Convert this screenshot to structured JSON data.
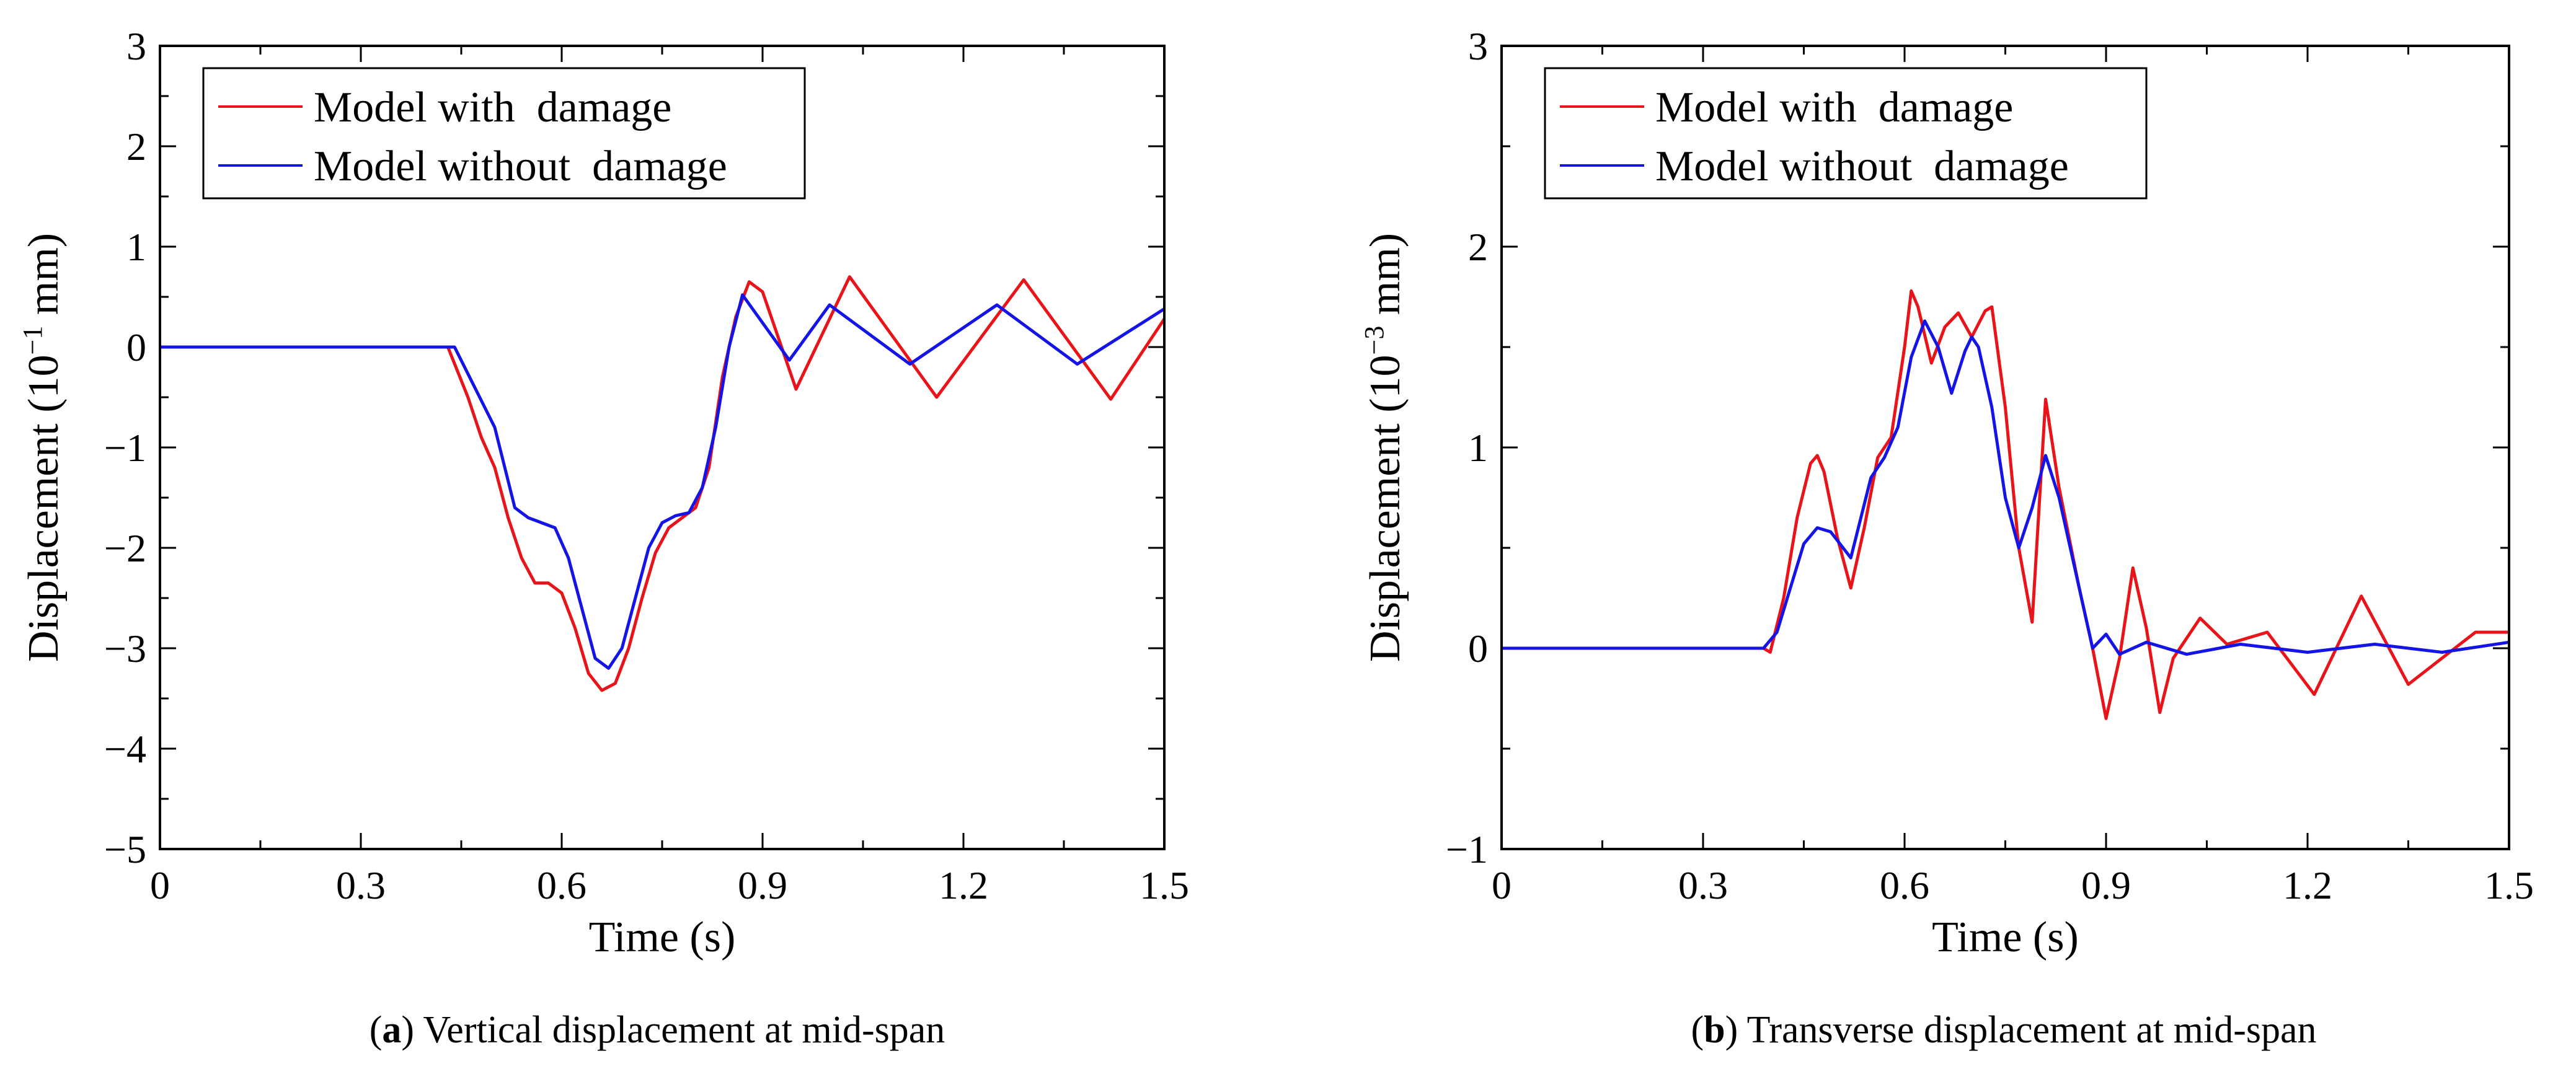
{
  "chart_data": [
    {
      "type": "line",
      "caption_letter": "a",
      "caption_text": "Vertical displacement at mid-span",
      "xlabel": "Time (s)",
      "ylabel_prefix": "Displacement (10",
      "ylabel_exp": "−1",
      "ylabel_suffix": " mm)",
      "xlim": [
        0,
        1.5
      ],
      "ylim": [
        -5,
        3
      ],
      "xticks": [
        0,
        0.3,
        0.6,
        0.9,
        1.2,
        1.5
      ],
      "xtick_labels": [
        "0",
        "0.3",
        "0.6",
        "0.9",
        "1.2",
        "1.5"
      ],
      "yticks": [
        -5,
        -4,
        -3,
        -2,
        -1,
        0,
        1,
        2,
        3
      ],
      "ytick_labels": [
        "−5",
        "−4",
        "−3",
        "−2",
        "−1",
        "0",
        "1",
        "2",
        "3"
      ],
      "grid": false,
      "legend_position": "top-left",
      "series": [
        {
          "name": "Model with  damage",
          "color": "#e8141a",
          "x": [
            0,
            0.43,
            0.46,
            0.48,
            0.5,
            0.52,
            0.54,
            0.56,
            0.58,
            0.6,
            0.62,
            0.64,
            0.66,
            0.68,
            0.7,
            0.72,
            0.74,
            0.76,
            0.78,
            0.8,
            0.82,
            0.84,
            0.86,
            0.88,
            0.9,
            0.95,
            1.03,
            1.16,
            1.29,
            1.42,
            1.5
          ],
          "y": [
            0,
            0,
            -0.5,
            -0.9,
            -1.2,
            -1.7,
            -2.1,
            -2.35,
            -2.35,
            -2.45,
            -2.8,
            -3.25,
            -3.42,
            -3.35,
            -3.0,
            -2.5,
            -2.05,
            -1.8,
            -1.7,
            -1.6,
            -1.2,
            -0.3,
            0.3,
            0.65,
            0.55,
            -0.42,
            0.7,
            -0.5,
            0.67,
            -0.52,
            0.28
          ]
        },
        {
          "name": "Model without  damage",
          "color": "#1414e6",
          "x": [
            0,
            0.44,
            0.5,
            0.53,
            0.55,
            0.57,
            0.59,
            0.61,
            0.63,
            0.65,
            0.67,
            0.69,
            0.71,
            0.73,
            0.75,
            0.77,
            0.79,
            0.81,
            0.83,
            0.85,
            0.87,
            0.94,
            1.0,
            1.12,
            1.25,
            1.37,
            1.5
          ],
          "y": [
            0,
            0,
            -0.8,
            -1.6,
            -1.7,
            -1.75,
            -1.8,
            -2.1,
            -2.6,
            -3.1,
            -3.2,
            -3.0,
            -2.5,
            -2.0,
            -1.75,
            -1.68,
            -1.65,
            -1.4,
            -0.8,
            0.0,
            0.52,
            -0.13,
            0.42,
            -0.17,
            0.42,
            -0.17,
            0.38
          ]
        }
      ]
    },
    {
      "type": "line",
      "caption_letter": "b",
      "caption_text": "Transverse displacement at mid-span",
      "xlabel": "Time (s)",
      "ylabel_prefix": "Displacement (10",
      "ylabel_exp": "−3",
      "ylabel_suffix": " mm)",
      "xlim": [
        0,
        1.5
      ],
      "ylim": [
        -1,
        3
      ],
      "xticks": [
        0,
        0.3,
        0.6,
        0.9,
        1.2,
        1.5
      ],
      "xtick_labels": [
        "0",
        "0.3",
        "0.6",
        "0.9",
        "1.2",
        "1.5"
      ],
      "yticks": [
        -1,
        0,
        1,
        2,
        3
      ],
      "ytick_labels": [
        "−1",
        "0",
        "1",
        "2",
        "3"
      ],
      "grid": false,
      "legend_position": "top-left",
      "series": [
        {
          "name": "Model with  damage",
          "color": "#e8141a",
          "x": [
            0,
            0.39,
            0.4,
            0.42,
            0.44,
            0.46,
            0.47,
            0.48,
            0.5,
            0.52,
            0.54,
            0.56,
            0.58,
            0.6,
            0.61,
            0.62,
            0.64,
            0.66,
            0.68,
            0.7,
            0.72,
            0.73,
            0.75,
            0.77,
            0.79,
            0.81,
            0.83,
            0.86,
            0.88,
            0.9,
            0.92,
            0.94,
            0.96,
            0.98,
            1.0,
            1.04,
            1.08,
            1.14,
            1.21,
            1.28,
            1.35,
            1.45,
            1.5
          ],
          "y": [
            0,
            0,
            -0.02,
            0.25,
            0.65,
            0.92,
            0.96,
            0.88,
            0.55,
            0.3,
            0.6,
            0.95,
            1.05,
            1.5,
            1.78,
            1.7,
            1.42,
            1.6,
            1.67,
            1.55,
            1.68,
            1.7,
            1.2,
            0.5,
            0.13,
            1.24,
            0.8,
            0.3,
            0.0,
            -0.35,
            -0.05,
            0.4,
            0.1,
            -0.32,
            -0.05,
            0.15,
            0.02,
            0.08,
            -0.23,
            0.26,
            -0.18,
            0.08,
            0.08
          ]
        },
        {
          "name": "Model without  damage",
          "color": "#1414e6",
          "x": [
            0,
            0.39,
            0.41,
            0.43,
            0.45,
            0.47,
            0.49,
            0.52,
            0.55,
            0.57,
            0.59,
            0.61,
            0.63,
            0.65,
            0.67,
            0.69,
            0.7,
            0.71,
            0.73,
            0.75,
            0.77,
            0.79,
            0.81,
            0.83,
            0.86,
            0.88,
            0.9,
            0.92,
            0.96,
            1.02,
            1.1,
            1.2,
            1.3,
            1.4,
            1.5
          ],
          "y": [
            0,
            0,
            0.08,
            0.3,
            0.52,
            0.6,
            0.58,
            0.45,
            0.85,
            0.95,
            1.1,
            1.45,
            1.63,
            1.5,
            1.27,
            1.48,
            1.55,
            1.5,
            1.2,
            0.75,
            0.5,
            0.7,
            0.96,
            0.75,
            0.3,
            0.0,
            0.07,
            -0.03,
            0.03,
            -0.03,
            0.02,
            -0.02,
            0.02,
            -0.02,
            0.03
          ]
        }
      ]
    }
  ]
}
